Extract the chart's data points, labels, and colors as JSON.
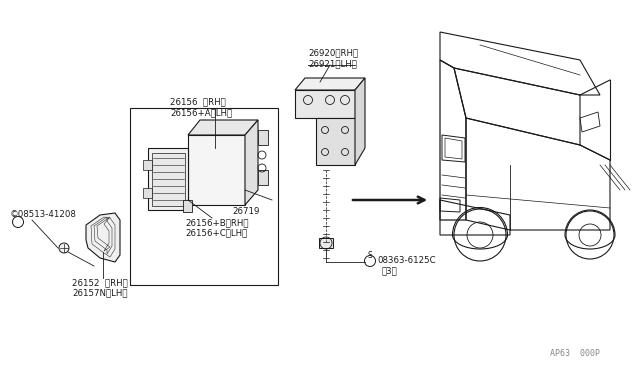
{
  "bg_color": "#ffffff",
  "line_color": "#1a1a1a",
  "text_color": "#1a1a1a",
  "diagram_code": "AP63  000P",
  "labels": {
    "part_26156": [
      "26156  （RH）",
      "26156+A（LH）"
    ],
    "part_26719": "26719",
    "part_26156bc": [
      "26156+B（RH）",
      "26156+C（LH）"
    ],
    "part_26152": [
      "26152  （RH）",
      "26157N（LH）"
    ],
    "part_26920": [
      "26920（RH）",
      "26921（LH）"
    ],
    "screw1": "©08513-41208",
    "screw2": [
      "©08363-6125C",
      "   （3）"
    ]
  }
}
